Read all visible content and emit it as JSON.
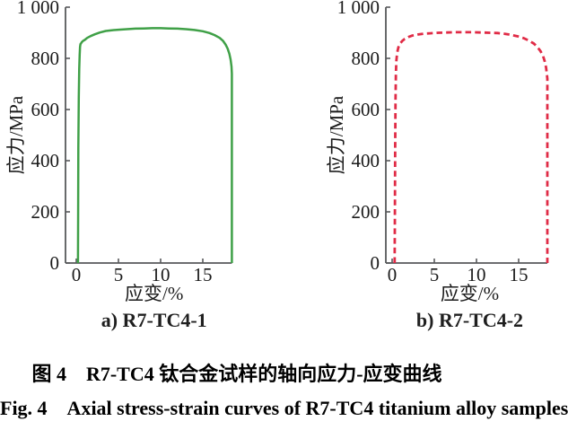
{
  "figure": {
    "caption_zh": "图 4　R7-TC4 钛合金试样的轴向应力-应变曲线",
    "caption_en": "Fig. 4　Axial stress-strain curves of R7-TC4 titanium alloy samples"
  },
  "style": {
    "axis_color": "#58595b",
    "text_color": "#1a1a1a"
  },
  "chart_data": [
    {
      "type": "line",
      "title": "a) R7-TC4-1",
      "xlabel": "应变/%",
      "ylabel": "应力/MPa",
      "xlim": [
        0,
        18.45
      ],
      "ylim": [
        0,
        1000
      ],
      "xticks": [
        0,
        5,
        10,
        15
      ],
      "yticks": [
        0,
        200,
        400,
        600,
        800,
        1000
      ],
      "ytick_labels": [
        "0",
        "200",
        "400",
        "600",
        "800",
        "1 000"
      ],
      "grid": false,
      "legend": "none",
      "line": {
        "color": "#3fa047",
        "style": "solid",
        "width": 2.5
      },
      "series": [
        {
          "name": "R7-TC4-1",
          "x": [
            0.2,
            0.22,
            0.25,
            0.3,
            0.35,
            0.4,
            0.45,
            0.5,
            0.55,
            0.65,
            0.8,
            1.0,
            1.3,
            1.7,
            2.2,
            2.8,
            3.5,
            4.2,
            5.0,
            6.0,
            7.0,
            8.0,
            9.0,
            10.0,
            11.0,
            12.0,
            13.0,
            14.0,
            15.0,
            15.8,
            16.4,
            17.0,
            17.4,
            17.7,
            17.95,
            18.15,
            18.3,
            18.4,
            18.45,
            18.45
          ],
          "y": [
            0,
            200,
            450,
            650,
            760,
            815,
            845,
            856,
            858,
            863,
            868,
            872,
            880,
            887,
            894,
            901,
            907,
            910,
            912,
            914,
            916,
            917,
            918,
            918,
            917,
            916,
            914,
            911,
            906,
            899,
            891,
            880,
            868,
            854,
            838,
            818,
            795,
            768,
            740,
            0
          ]
        }
      ]
    },
    {
      "type": "line",
      "title": "b) R7-TC4-2",
      "xlabel": "应变/%",
      "ylabel": "应力/MPa",
      "xlim": [
        0,
        18.4
      ],
      "ylim": [
        0,
        1000
      ],
      "xticks": [
        0,
        5,
        10,
        15
      ],
      "yticks": [
        0,
        200,
        400,
        600,
        800,
        1000
      ],
      "ytick_labels": [
        "0",
        "200",
        "400",
        "600",
        "800",
        "1 000"
      ],
      "grid": false,
      "legend": "none",
      "line": {
        "color": "#e02b46",
        "style": "dashed",
        "width": 2.8
      },
      "series": [
        {
          "name": "R7-TC4-2",
          "x": [
            0.3,
            0.33,
            0.36,
            0.4,
            0.45,
            0.5,
            0.6,
            0.75,
            0.95,
            1.2,
            1.5,
            1.9,
            2.4,
            3.0,
            3.7,
            4.5,
            5.5,
            6.5,
            7.5,
            8.5,
            9.5,
            10.5,
            11.5,
            12.5,
            13.3,
            14.1,
            14.9,
            15.6,
            16.2,
            16.8,
            17.2,
            17.6,
            17.9,
            18.1,
            18.25,
            18.35,
            18.4,
            18.4
          ],
          "y": [
            0,
            200,
            450,
            640,
            740,
            790,
            822,
            843,
            858,
            868,
            876,
            883,
            889,
            893,
            896,
            898,
            900,
            901,
            902,
            902,
            902,
            901,
            900,
            899,
            896,
            892,
            886,
            879,
            870,
            858,
            845,
            828,
            808,
            788,
            763,
            737,
            720,
            0
          ]
        }
      ]
    }
  ]
}
